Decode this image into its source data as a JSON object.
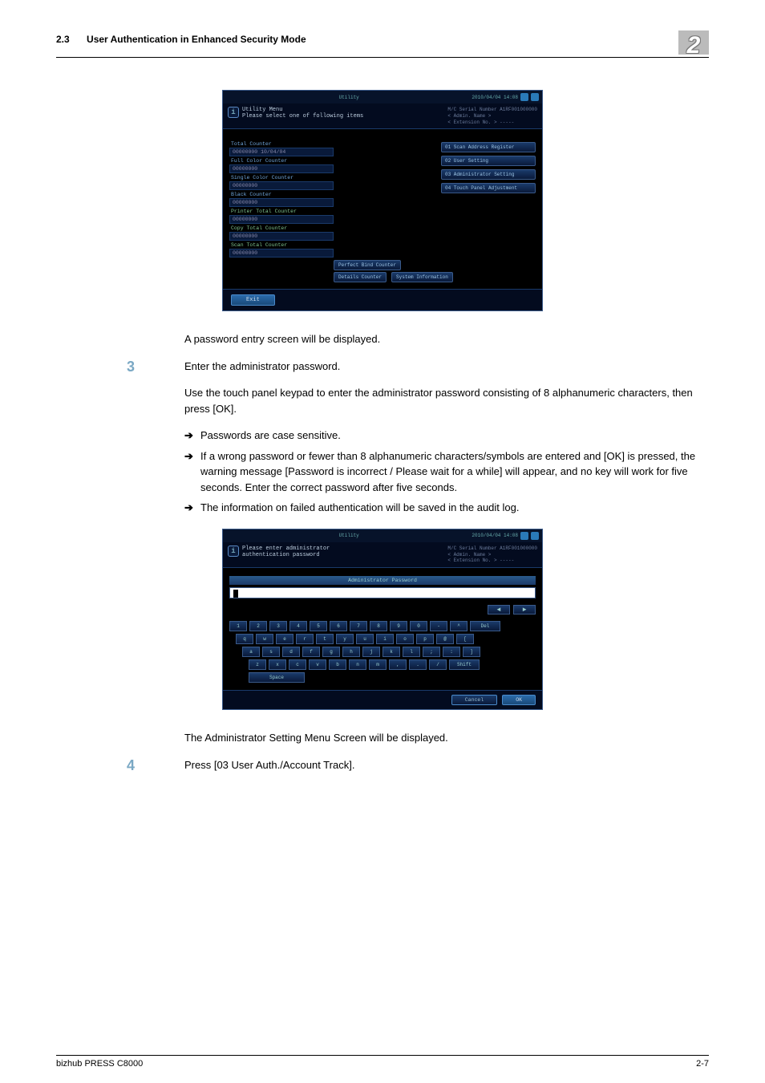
{
  "header": {
    "section_num": "2.3",
    "section_title": "User Authentication in Enhanced Security Mode",
    "chapter_num": "2"
  },
  "screenshot1": {
    "top_title": "Utility",
    "top_right": "2010/04/04 14:08",
    "header_line1": "Utility Menu",
    "header_line2": "Please select one of following items",
    "hr_serial": "M/C Serial Number  A1RF001000000",
    "hr_admin": "< Admin. Name >",
    "hr_ext": "< Extension No. >  -----",
    "counters": [
      {
        "label": "Total Counter",
        "val": "00000000    10/04/04"
      },
      {
        "label": "Full Color Counter",
        "val": "00000000"
      },
      {
        "label": "Single Color Counter",
        "val": "00000000"
      },
      {
        "label": "Black Counter",
        "val": "00000000"
      },
      {
        "label": "Printer Total Counter",
        "val": "00000000",
        "green": true
      },
      {
        "label": "Copy Total Counter",
        "val": "00000000",
        "green": true
      },
      {
        "label": "Scan Total Counter",
        "val": "00000000",
        "green": true
      }
    ],
    "right_buttons": [
      "01 Scan Address Register",
      "02 User Setting",
      "03 Administrator Setting",
      "04 Touch Panel Adjustment"
    ],
    "mid_buttons": [
      "Perfect Bind Counter",
      "Details Counter",
      "System Information"
    ],
    "exit": "Exit"
  },
  "caption1": "A password entry screen will be displayed.",
  "step3": {
    "num": "3",
    "lead": "Enter the administrator password.",
    "para": "Use the touch panel keypad to enter the administrator password consisting of 8 alphanumeric characters, then press [OK].",
    "bullets": [
      "Passwords are case sensitive.",
      "If a wrong password or fewer than 8 alphanumeric characters/symbols are entered and [OK] is pressed, the warning message [Password is incorrect / Please wait for a while] will appear, and no key will work for five seconds. Enter the correct password after five seconds.",
      "The information on failed authentication will be saved in the audit log."
    ]
  },
  "screenshot2": {
    "top_title": "Utility",
    "top_right": "2010/04/04 14:08",
    "header_line1": "Please enter administrator",
    "header_line2": "authentication password",
    "hr_serial": "M/C Serial Number  A1RF001000000",
    "hr_admin": "< Admin. Name >",
    "hr_ext": "< Extension No. >  -----",
    "panel_title": "Administrator Password",
    "row1": [
      "1",
      "2",
      "3",
      "4",
      "5",
      "6",
      "7",
      "8",
      "9",
      "0",
      "-",
      "^",
      "Del"
    ],
    "row2": [
      "q",
      "w",
      "e",
      "r",
      "t",
      "y",
      "u",
      "i",
      "o",
      "p",
      "@",
      "["
    ],
    "row3": [
      "a",
      "s",
      "d",
      "f",
      "g",
      "h",
      "j",
      "k",
      "l",
      ";",
      ":",
      "]"
    ],
    "row4": [
      "z",
      "x",
      "c",
      "v",
      "b",
      "n",
      "m",
      ",",
      ".",
      "/",
      "Shift"
    ],
    "space": "Space",
    "cancel": "Cancel",
    "ok": "OK"
  },
  "caption2": "The Administrator Setting Menu Screen will be displayed.",
  "step4": {
    "num": "4",
    "lead": "Press [03 User Auth./Account Track]."
  },
  "footer": {
    "left": "bizhub PRESS C8000",
    "right": "2-7"
  }
}
